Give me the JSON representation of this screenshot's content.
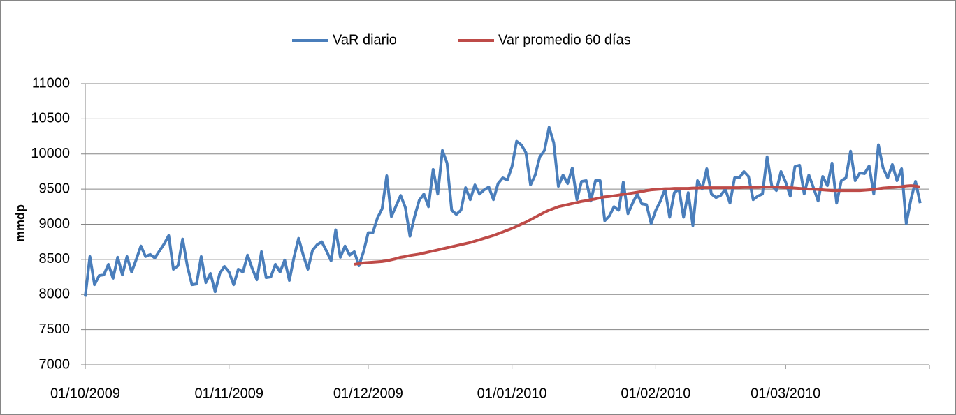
{
  "chart_data": {
    "type": "line",
    "y_label": "mmdp",
    "ylim": [
      7000,
      11000
    ],
    "yticks": [
      7000,
      7500,
      8000,
      8500,
      9000,
      9500,
      10000,
      10500,
      11000
    ],
    "xlim": [
      "2009-10-01",
      "2010-04-01"
    ],
    "xticks": [
      {
        "value": "2009-10-01",
        "label": "01/10/2009"
      },
      {
        "value": "2009-11-01",
        "label": "01/11/2009"
      },
      {
        "value": "2009-12-01",
        "label": "01/12/2009"
      },
      {
        "value": "2010-01-01",
        "label": "01/01/2010"
      },
      {
        "value": "2010-02-01",
        "label": "01/02/2010"
      },
      {
        "value": "2010-03-01",
        "label": "01/03/2010"
      }
    ],
    "grid": true,
    "legend": "top",
    "x": [
      "2009-10-01",
      "2009-10-02",
      "2009-10-03",
      "2009-10-04",
      "2009-10-05",
      "2009-10-06",
      "2009-10-07",
      "2009-10-08",
      "2009-10-09",
      "2009-10-10",
      "2009-10-11",
      "2009-10-12",
      "2009-10-13",
      "2009-10-14",
      "2009-10-15",
      "2009-10-16",
      "2009-10-17",
      "2009-10-18",
      "2009-10-19",
      "2009-10-20",
      "2009-10-21",
      "2009-10-22",
      "2009-10-23",
      "2009-10-24",
      "2009-10-25",
      "2009-10-26",
      "2009-10-27",
      "2009-10-28",
      "2009-10-29",
      "2009-10-30",
      "2009-10-31",
      "2009-11-01",
      "2009-11-02",
      "2009-11-03",
      "2009-11-04",
      "2009-11-05",
      "2009-11-06",
      "2009-11-07",
      "2009-11-08",
      "2009-11-09",
      "2009-11-10",
      "2009-11-11",
      "2009-11-12",
      "2009-11-13",
      "2009-11-14",
      "2009-11-15",
      "2009-11-16",
      "2009-11-17",
      "2009-11-18",
      "2009-11-19",
      "2009-11-20",
      "2009-11-21",
      "2009-11-22",
      "2009-11-23",
      "2009-11-24",
      "2009-11-25",
      "2009-11-26",
      "2009-11-27",
      "2009-11-28",
      "2009-11-29",
      "2009-11-30",
      "2009-12-01",
      "2009-12-02",
      "2009-12-03",
      "2009-12-04",
      "2009-12-05",
      "2009-12-06",
      "2009-12-07",
      "2009-12-08",
      "2009-12-09",
      "2009-12-10",
      "2009-12-11",
      "2009-12-12",
      "2009-12-13",
      "2009-12-14",
      "2009-12-15",
      "2009-12-16",
      "2009-12-17",
      "2009-12-18",
      "2009-12-19",
      "2009-12-20",
      "2009-12-21",
      "2009-12-22",
      "2009-12-23",
      "2009-12-24",
      "2009-12-25",
      "2009-12-26",
      "2009-12-27",
      "2009-12-28",
      "2009-12-29",
      "2009-12-30",
      "2009-12-31",
      "2010-01-01",
      "2010-01-02",
      "2010-01-03",
      "2010-01-04",
      "2010-01-05",
      "2010-01-06",
      "2010-01-07",
      "2010-01-08",
      "2010-01-09",
      "2010-01-10",
      "2010-01-11",
      "2010-01-12",
      "2010-01-13",
      "2010-01-14",
      "2010-01-15",
      "2010-01-16",
      "2010-01-17",
      "2010-01-18",
      "2010-01-19",
      "2010-01-20",
      "2010-01-21",
      "2010-01-22",
      "2010-01-23",
      "2010-01-24",
      "2010-01-25",
      "2010-01-26",
      "2010-01-27",
      "2010-01-28",
      "2010-01-29",
      "2010-01-30",
      "2010-01-31",
      "2010-02-01",
      "2010-02-02",
      "2010-02-03",
      "2010-02-04",
      "2010-02-05",
      "2010-02-06",
      "2010-02-07",
      "2010-02-08",
      "2010-02-09",
      "2010-02-10",
      "2010-02-11",
      "2010-02-12",
      "2010-02-13",
      "2010-02-14",
      "2010-02-15",
      "2010-02-16",
      "2010-02-17",
      "2010-02-18",
      "2010-02-19",
      "2010-02-20",
      "2010-02-21",
      "2010-02-22",
      "2010-02-23",
      "2010-02-24",
      "2010-02-25",
      "2010-02-26",
      "2010-02-27",
      "2010-02-28",
      "2010-03-01",
      "2010-03-02",
      "2010-03-03",
      "2010-03-04",
      "2010-03-05",
      "2010-03-06",
      "2010-03-07",
      "2010-03-08",
      "2010-03-09",
      "2010-03-10",
      "2010-03-11",
      "2010-03-12",
      "2010-03-13",
      "2010-03-14",
      "2010-03-15",
      "2010-03-16",
      "2010-03-17",
      "2010-03-18",
      "2010-03-19",
      "2010-03-20",
      "2010-03-21",
      "2010-03-22",
      "2010-03-23",
      "2010-03-24",
      "2010-03-25",
      "2010-03-26",
      "2010-03-27",
      "2010-03-28",
      "2010-03-29",
      "2010-03-30"
    ],
    "series": [
      {
        "name": "VaR diario",
        "color": "#4a7ebb",
        "values": [
          7970,
          8540,
          8140,
          8270,
          8280,
          8430,
          8230,
          8530,
          8280,
          8540,
          8320,
          8500,
          8690,
          8540,
          8570,
          8520,
          8620,
          8720,
          8840,
          8360,
          8410,
          8790,
          8410,
          8140,
          8150,
          8540,
          8170,
          8300,
          8040,
          8300,
          8400,
          8320,
          8140,
          8360,
          8320,
          8560,
          8370,
          8210,
          8610,
          8240,
          8250,
          8430,
          8320,
          8490,
          8200,
          8530,
          8800,
          8560,
          8360,
          8630,
          8710,
          8750,
          8620,
          8480,
          8920,
          8530,
          8690,
          8560,
          8610,
          8410,
          8610,
          8880,
          8880,
          9090,
          9220,
          9690,
          9110,
          9260,
          9410,
          9240,
          8830,
          9110,
          9340,
          9430,
          9250,
          9780,
          9430,
          10050,
          9870,
          9200,
          9140,
          9200,
          9520,
          9350,
          9560,
          9430,
          9490,
          9530,
          9350,
          9580,
          9660,
          9630,
          9820,
          10180,
          10130,
          10020,
          9560,
          9700,
          9960,
          10050,
          10380,
          10160,
          9540,
          9700,
          9580,
          9800,
          9350,
          9610,
          9620,
          9330,
          9620,
          9620,
          9050,
          9120,
          9250,
          9200,
          9600,
          9150,
          9300,
          9430,
          9290,
          9280,
          9010,
          9200,
          9330,
          9500,
          9100,
          9450,
          9500,
          9100,
          9450,
          8980,
          9620,
          9500,
          9790,
          9430,
          9380,
          9410,
          9500,
          9300,
          9660,
          9660,
          9750,
          9680,
          9350,
          9400,
          9430,
          9960,
          9550,
          9480,
          9750,
          9600,
          9400,
          9820,
          9840,
          9430,
          9700,
          9520,
          9330,
          9680,
          9550,
          9870,
          9300,
          9620,
          9660,
          10040,
          9620,
          9730,
          9720,
          9830,
          9430,
          10130,
          9800,
          9660,
          9850,
          9620,
          9790,
          9010,
          9350,
          9610,
          9300
        ]
      },
      {
        "name": "Var promedio 60 días",
        "color": "#be4b48",
        "values": [
          null,
          null,
          null,
          null,
          null,
          null,
          null,
          null,
          null,
          null,
          null,
          null,
          null,
          null,
          null,
          null,
          null,
          null,
          null,
          null,
          null,
          null,
          null,
          null,
          null,
          null,
          null,
          null,
          null,
          null,
          null,
          null,
          null,
          null,
          null,
          null,
          null,
          null,
          null,
          null,
          null,
          null,
          null,
          null,
          null,
          null,
          null,
          null,
          null,
          null,
          null,
          null,
          null,
          null,
          null,
          null,
          null,
          null,
          8430,
          8440,
          8450,
          8455,
          8460,
          8465,
          8470,
          8480,
          8495,
          8510,
          8530,
          8540,
          8555,
          8565,
          8575,
          8590,
          8605,
          8620,
          8635,
          8650,
          8665,
          8680,
          8695,
          8710,
          8725,
          8740,
          8760,
          8780,
          8800,
          8820,
          8840,
          8865,
          8890,
          8915,
          8940,
          8970,
          9000,
          9030,
          9065,
          9100,
          9135,
          9170,
          9200,
          9225,
          9250,
          9265,
          9280,
          9295,
          9310,
          9325,
          9335,
          9350,
          9360,
          9375,
          9390,
          9395,
          9405,
          9415,
          9425,
          9435,
          9445,
          9455,
          9465,
          9480,
          9490,
          9495,
          9500,
          9505,
          9505,
          9510,
          9510,
          9510,
          9510,
          9515,
          9515,
          9520,
          9520,
          9520,
          9520,
          9520,
          9520,
          9520,
          9520,
          9520,
          9525,
          9525,
          9525,
          9525,
          9530,
          9530,
          9530,
          9530,
          9525,
          9520,
          9520,
          9515,
          9510,
          9505,
          9500,
          9500,
          9495,
          9490,
          9485,
          9480,
          9480,
          9480,
          9480,
          9480,
          9480,
          9480,
          9485,
          9490,
          9495,
          9505,
          9515,
          9520,
          9525,
          9530,
          9535,
          9545,
          9550,
          9545,
          9530
        ]
      }
    ]
  }
}
